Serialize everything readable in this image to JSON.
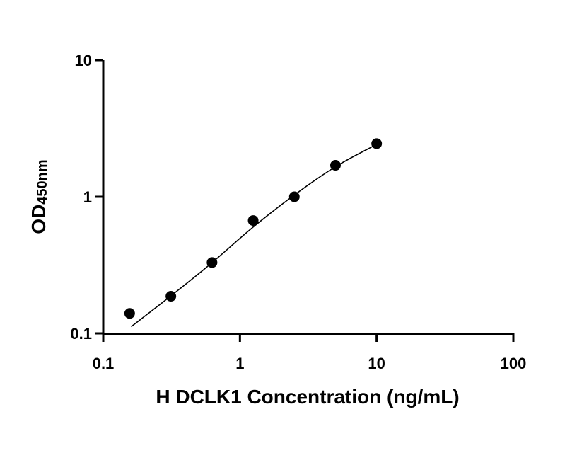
{
  "chart_data": {
    "type": "scatter",
    "x_scale": "log",
    "y_scale": "log",
    "xlim": [
      0.1,
      100
    ],
    "ylim": [
      0.1,
      10
    ],
    "x_ticks": [
      "0.1",
      "1",
      "10",
      "100"
    ],
    "y_ticks": [
      "0.1",
      "1",
      "10"
    ],
    "xlabel": "H DCLK1 Concentration (ng/mL)",
    "ylabel_main": "OD",
    "ylabel_sub": "450nm",
    "grid": false,
    "legend": "none",
    "series": [
      {
        "x": [
          0.156,
          0.3125,
          0.625,
          1.25,
          2.5,
          5,
          10
        ],
        "y": [
          0.14,
          0.187,
          0.33,
          0.67,
          1.0,
          1.7,
          2.45
        ]
      }
    ],
    "fit_curve": {
      "x": [
        0.16,
        0.3,
        0.6,
        1.25,
        2.5,
        5,
        10
      ],
      "y": [
        0.112,
        0.182,
        0.318,
        0.6,
        1.03,
        1.66,
        2.42
      ]
    }
  }
}
